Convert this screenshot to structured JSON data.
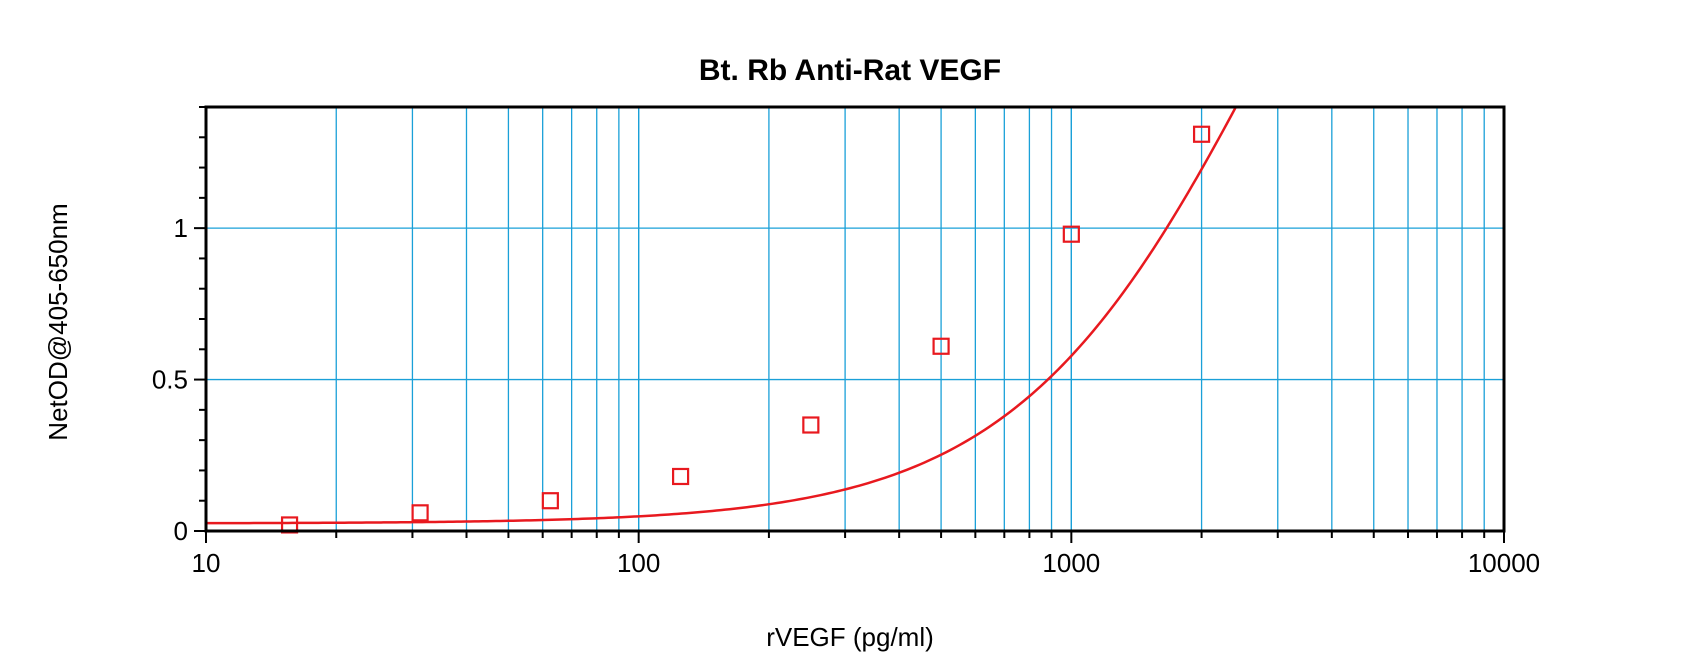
{
  "chart_data": {
    "type": "scatter",
    "title": "Bt. Rb Anti-Rat VEGF",
    "xlabel": "rVEGF (pg/ml)",
    "ylabel": "NetOD@405-650nm",
    "x_scale": "log",
    "xlim": [
      10,
      10000
    ],
    "ylim": [
      0,
      1.4
    ],
    "x_ticks": [
      10,
      100,
      1000,
      10000
    ],
    "x_tick_labels": [
      "10",
      "100",
      "1000",
      "10000"
    ],
    "y_ticks": [
      0,
      0.5,
      1
    ],
    "y_tick_labels": [
      "0",
      "0.5",
      "1"
    ],
    "grid": true,
    "series": [
      {
        "x": [
          15.6,
          31.25,
          62.5,
          125,
          250,
          500,
          1000,
          2000
        ],
        "y": [
          0.02,
          0.06,
          0.1,
          0.18,
          0.35,
          0.61,
          0.98,
          1.31
        ],
        "marker": "square",
        "fit": "4-parameter logistic"
      }
    ],
    "colors": {
      "series": "#e8191f",
      "grid": "#1aa0d8",
      "axes": "#000000"
    }
  }
}
